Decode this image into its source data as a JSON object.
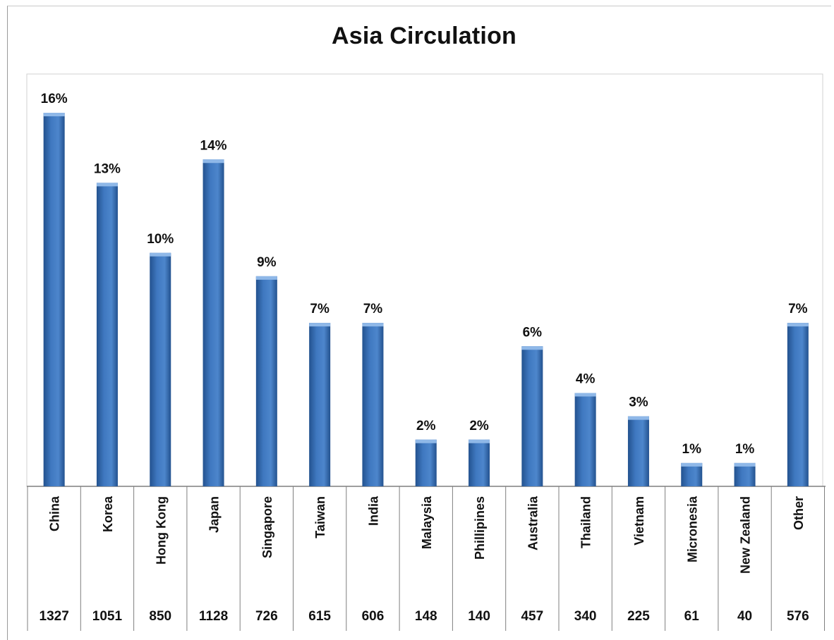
{
  "chart_data": {
    "type": "bar",
    "title": "Asia Circulation",
    "categories": [
      "China",
      "Korea",
      "Hong Kong",
      "Japan",
      "Singapore",
      "Taiwan",
      "India",
      "Malaysia",
      "Phillipines",
      "Australia",
      "Thailand",
      "Vietnam",
      "Micronesia",
      "New Zealand",
      "Other"
    ],
    "values": [
      1327,
      1051,
      850,
      1128,
      726,
      615,
      606,
      148,
      140,
      457,
      340,
      225,
      61,
      40,
      576
    ],
    "percent_labels": [
      "16%",
      "13%",
      "10%",
      "14%",
      "9%",
      "7%",
      "7%",
      "2%",
      "2%",
      "6%",
      "4%",
      "3%",
      "1%",
      "1%",
      "7%"
    ],
    "bar_percents": [
      16,
      13,
      10,
      14,
      9,
      7,
      7,
      2,
      2,
      6,
      4,
      3,
      1,
      1,
      7
    ],
    "ylim": [
      0,
      17.5
    ],
    "grid": false,
    "legend": "none",
    "colors": {
      "bar": "#3f78c0",
      "bar_dark": "#23528f",
      "bar_light": "#8fb8e8",
      "axis": "#7f7f7f",
      "plot_border": "#d0d0d0"
    }
  }
}
